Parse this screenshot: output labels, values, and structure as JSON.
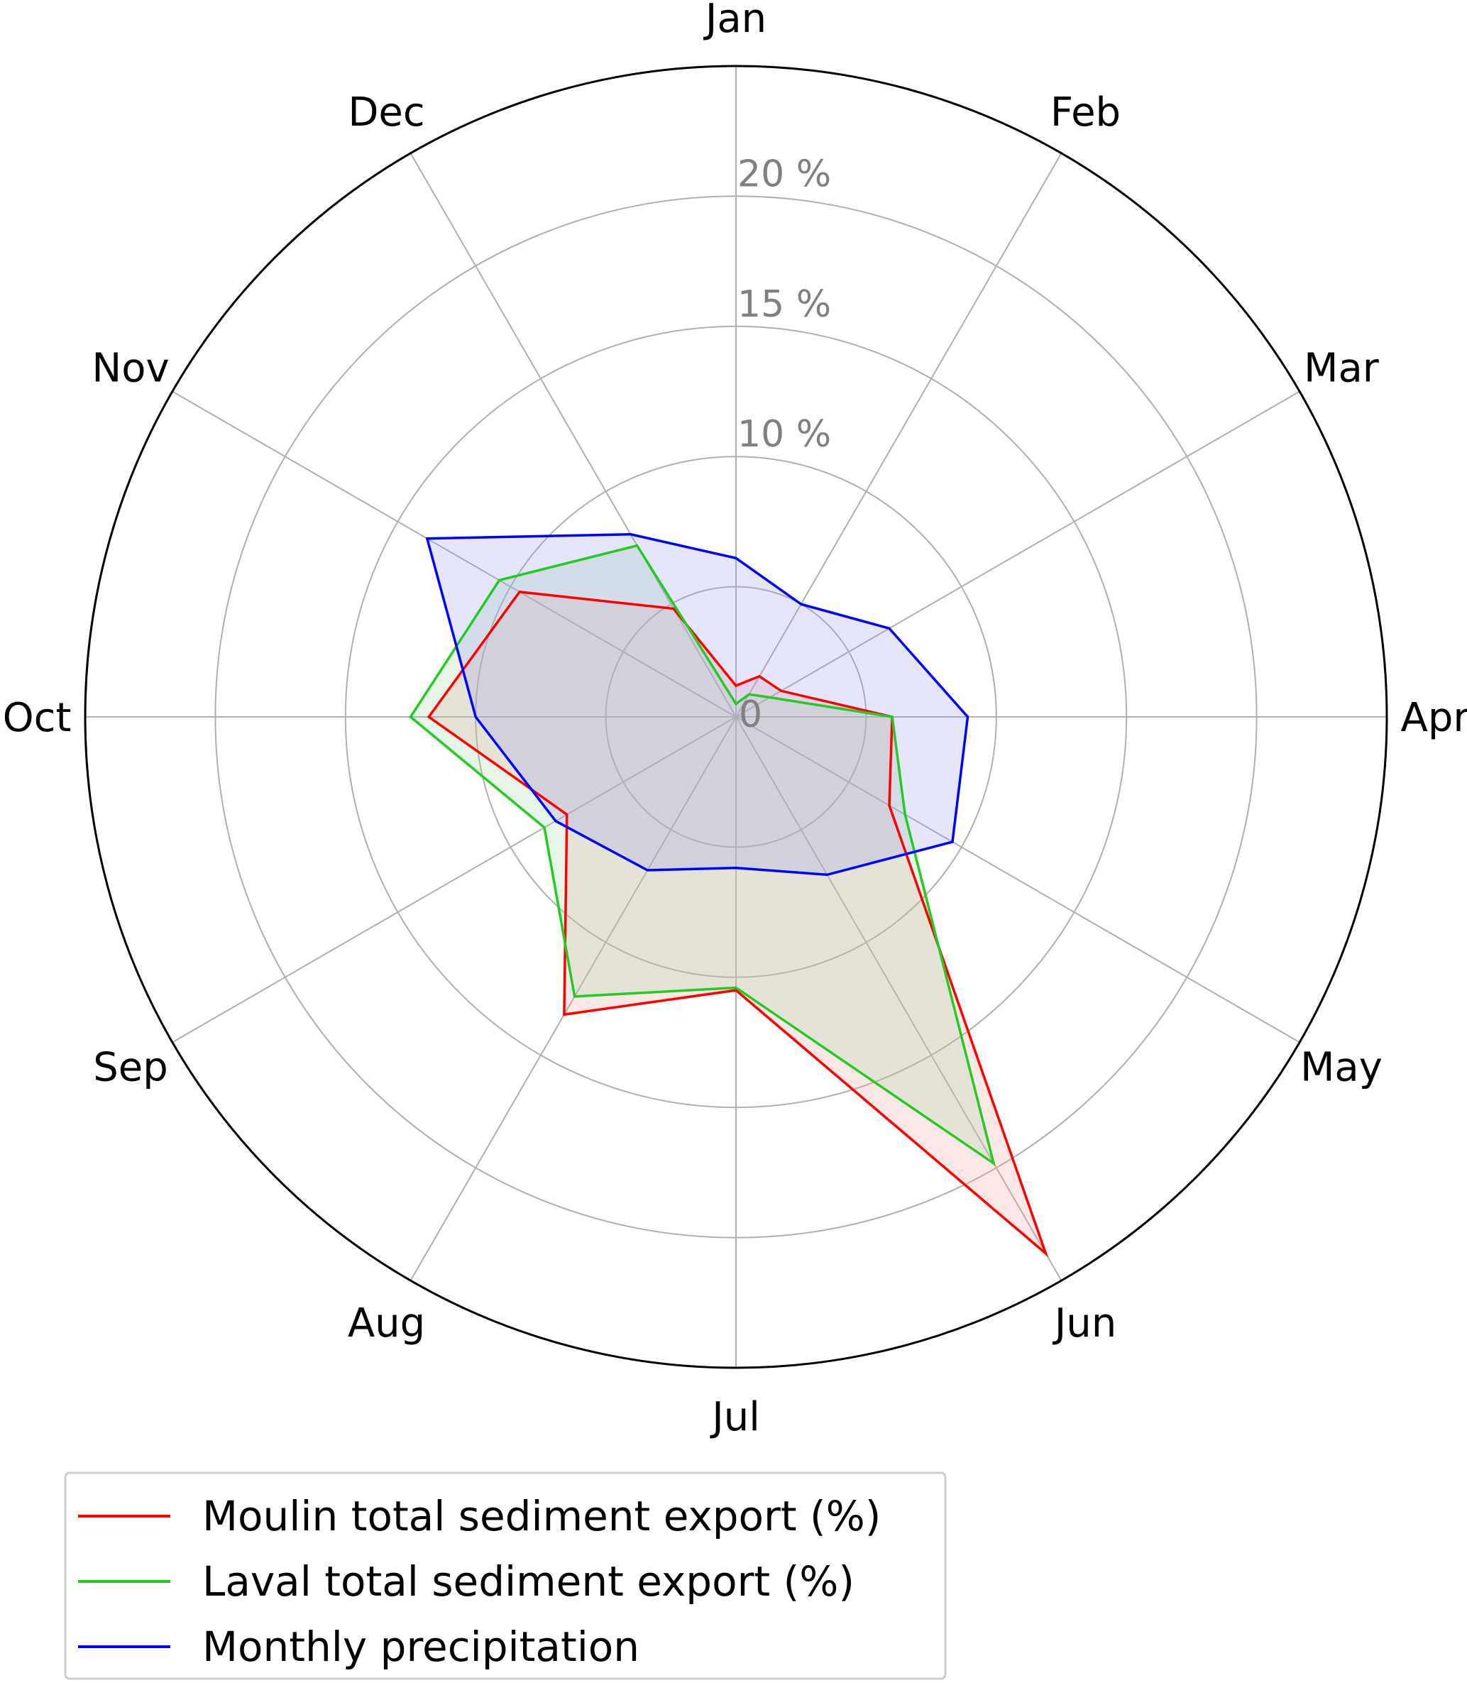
{
  "chart_data": {
    "type": "radar",
    "categories": [
      "Jan",
      "Feb",
      "Mar",
      "Apr",
      "May",
      "Jun",
      "Jul",
      "Aug",
      "Sep",
      "Oct",
      "Nov",
      "Dec"
    ],
    "rlim": [
      0,
      25
    ],
    "rticks": [
      0,
      5,
      10,
      15,
      20
    ],
    "rtick_labels": [
      "0",
      "",
      "10 %",
      "15 %",
      "20 %"
    ],
    "grid": true,
    "legend_position": "bottom-left",
    "series": [
      {
        "name": "Moulin total sediment export (%)",
        "color": "#ff0000",
        "fill": "#f4a0a0",
        "values": [
          1.2,
          1.8,
          2.0,
          6.0,
          6.8,
          23.8,
          10.5,
          13.2,
          7.5,
          11.8,
          9.6,
          4.8
        ]
      },
      {
        "name": "Laval total sediment export (%)",
        "color": "#22cc22",
        "fill": "#a0d8a0",
        "values": [
          0.5,
          1.0,
          1.5,
          6.0,
          7.5,
          19.8,
          10.4,
          12.4,
          8.5,
          12.5,
          10.5,
          7.6
        ]
      },
      {
        "name": "Monthly precipitation",
        "color": "#0000ff",
        "fill": "#9999ee",
        "values": [
          6.1,
          5.0,
          6.8,
          8.9,
          9.6,
          7.0,
          5.8,
          6.8,
          8.0,
          10.0,
          13.7,
          8.1
        ]
      }
    ]
  }
}
